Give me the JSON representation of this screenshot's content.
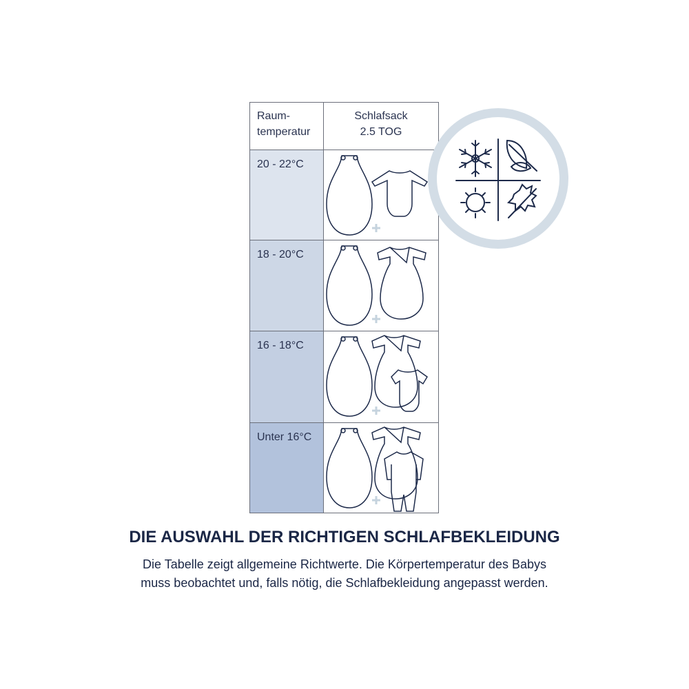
{
  "table": {
    "header": {
      "col1_line1": "Raum-",
      "col1_line2": "temperatur",
      "col2_line1": "Schlafsack",
      "col2_line2": "2.5 TOG"
    },
    "rows": [
      {
        "temperature": "20 - 22°C",
        "clothing": [
          "sleeping-bag",
          "long-sleeve-bodysuit"
        ],
        "color": "#dde4ee"
      },
      {
        "temperature": "18 - 20°C",
        "clothing": [
          "sleeping-bag",
          "wrap-sleep-gown"
        ],
        "color": "#cdd7e6"
      },
      {
        "temperature": "16 - 18°C",
        "clothing": [
          "sleeping-bag",
          "wrap-sleep-gown",
          "short-sleeve-bodysuit"
        ],
        "color": "#c3cfe2"
      },
      {
        "temperature": "Unter 16°C",
        "clothing": [
          "sleeping-bag",
          "wrap-sleep-gown",
          "footed-sleepsuit"
        ],
        "color": "#b2c2dc"
      }
    ]
  },
  "seasons_icon": [
    "snowflake-icon",
    "leaf-icon",
    "sun-icon",
    "maple-leaf-icon"
  ],
  "title": "DIE AUSWAHL DER RICHTIGEN SCHLAFBEKLEIDUNG",
  "description_line1": "Die Tabelle zeigt allgemeine Richtwerte. Die Körpertemperatur des Babys",
  "description_line2": "muss beobachtet und, falls nötig, die Schlafbekleidung angepasst werden.",
  "colors": {
    "text": "#1b2746",
    "ring": "#d3dde6"
  }
}
